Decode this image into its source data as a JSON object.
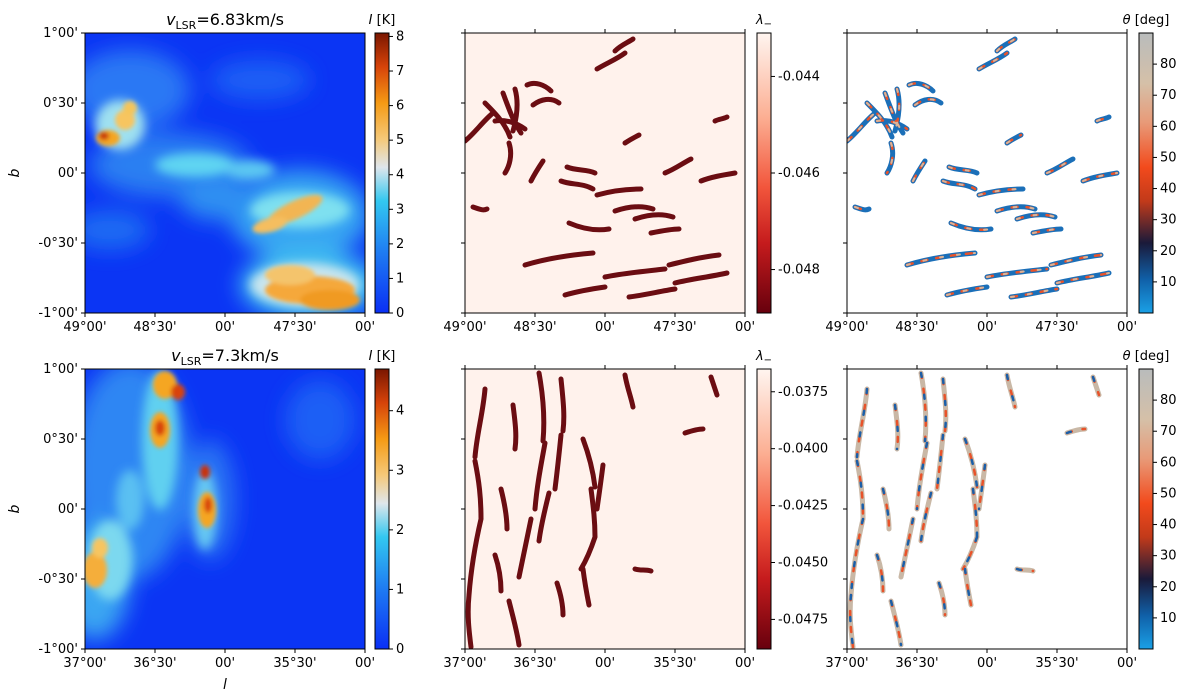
{
  "figure": {
    "description_panels": "Two rows (velocity channels) x three columns (intensity map, lambda_minus mask, orientation angle)"
  },
  "chart_data": [
    {
      "type": "heatmap",
      "row": 0,
      "panel": "intensity",
      "title_prefix": "v",
      "title_sub": "LSR",
      "title_suffix": "=6.83km/s",
      "ylabel": "b",
      "xlabel": "",
      "xticks": [
        "49°00'",
        "48°30'",
        "00'",
        "47°30'",
        "00'"
      ],
      "yticks": [
        "1°00'",
        "0°30'",
        "00'",
        "-0°30'",
        "-1°00'"
      ],
      "colorbar": {
        "label_var": "I",
        "label_unit": " [K]",
        "ticks": [
          0,
          1,
          2,
          3,
          4,
          5,
          6,
          7,
          8
        ],
        "range": [
          0,
          8.1
        ],
        "cmap": "intensity"
      }
    },
    {
      "type": "heatmap",
      "row": 0,
      "panel": "lambda",
      "xlabel": "",
      "xticks": [
        "49°00'",
        "48°30'",
        "00'",
        "47°30'",
        "00'"
      ],
      "colorbar": {
        "label_var": "λ",
        "label_sub": "−",
        "ticks": [
          "-0.044",
          "-0.046",
          "-0.048"
        ],
        "tick_values": [
          -0.044,
          -0.046,
          -0.048
        ],
        "range": [
          -0.0489,
          -0.0431
        ],
        "cmap": "reds_r"
      }
    },
    {
      "type": "heatmap",
      "row": 0,
      "panel": "theta",
      "xticks": [
        "49°00'",
        "48°30'",
        "00'",
        "47°30'",
        "00'"
      ],
      "colorbar": {
        "label_var": "θ",
        "label_unit": " [deg]",
        "ticks": [
          10,
          20,
          30,
          40,
          50,
          60,
          70,
          80
        ],
        "range": [
          0,
          90
        ],
        "cmap": "theta"
      }
    },
    {
      "type": "heatmap",
      "row": 1,
      "panel": "intensity",
      "title_prefix": "v",
      "title_sub": "LSR",
      "title_suffix": "=7.3km/s",
      "ylabel": "b",
      "xlabel": "l",
      "xticks": [
        "37°00'",
        "36°30'",
        "00'",
        "35°30'",
        "00'"
      ],
      "yticks": [
        "1°00'",
        "0°30'",
        "00'",
        "-0°30'",
        "-1°00'"
      ],
      "colorbar": {
        "label_var": "I",
        "label_unit": " [K]",
        "ticks": [
          0,
          1,
          2,
          3,
          4
        ],
        "range": [
          0,
          4.7
        ],
        "cmap": "intensity"
      }
    },
    {
      "type": "heatmap",
      "row": 1,
      "panel": "lambda",
      "xticks": [
        "37°00'",
        "36°30'",
        "00'",
        "35°30'",
        "00'"
      ],
      "colorbar": {
        "label_var": "λ",
        "label_sub": "−",
        "ticks": [
          "-0.0375",
          "-0.0400",
          "-0.0425",
          "-0.0450",
          "-0.0475"
        ],
        "tick_values": [
          -0.0375,
          -0.04,
          -0.0425,
          -0.045,
          -0.0475
        ],
        "range": [
          -0.0488,
          -0.0365
        ],
        "cmap": "reds_r"
      }
    },
    {
      "type": "heatmap",
      "row": 1,
      "panel": "theta",
      "xticks": [
        "37°00'",
        "36°30'",
        "00'",
        "35°30'",
        "00'"
      ],
      "colorbar": {
        "label_var": "θ",
        "label_unit": " [deg]",
        "ticks": [
          10,
          20,
          30,
          40,
          50,
          60,
          70,
          80
        ],
        "range": [
          0,
          90
        ],
        "cmap": "theta"
      }
    }
  ],
  "colors": {
    "lambda_background": "#fff2ec",
    "lambda_filament": "#6b0d12",
    "intensity_low": "#0a32f5",
    "intensity_high": "#8b1a00"
  }
}
